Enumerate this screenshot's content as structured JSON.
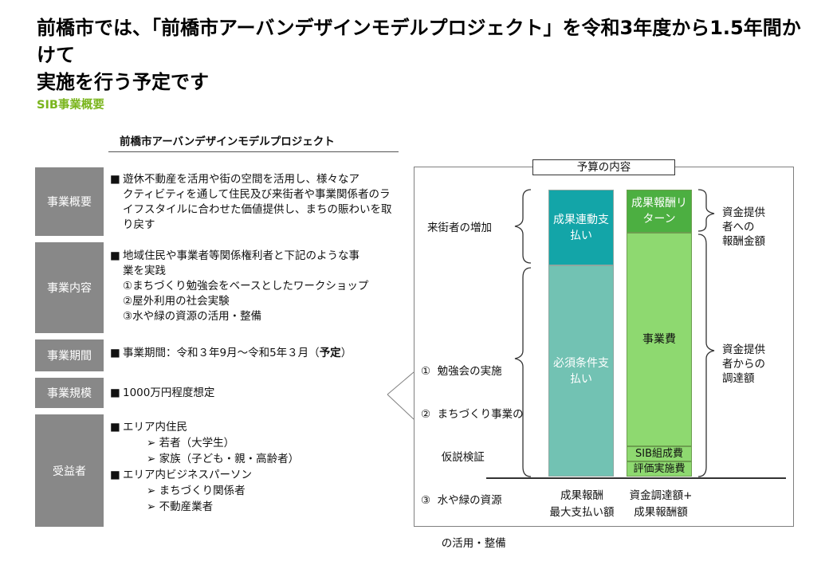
{
  "title": {
    "line1": "前橋市では、「前橋市アーバンデザインモデルプロジェクト」を令和3年度から1.5年間かけて",
    "line2": "実施を行う予定です"
  },
  "section_heading": "SIB事業概要",
  "project": {
    "name": "前橋市アーバンデザインモデルプロジェクト",
    "rows": [
      {
        "label": "事業概要",
        "lines": [
          "遊休不動産を活用や街の空間を活用し、様々なア",
          "クティビティを通して住民及び来街者や事業関係者のラ",
          "イフスタイルに合わせた価値提供し、まちの賑わいを取",
          "り戻す"
        ]
      },
      {
        "label": "事業内容",
        "lines": [
          "地域住民や事業者等関係権利者と下記のような事",
          "業を実践",
          "①まちづくり勉強会をベースとしたワークショップ",
          "②屋外利用の社会実験",
          "③水や緑の資源の活用・整備"
        ]
      },
      {
        "label": "事業期間",
        "text": "事業期間：令和３年9月～令和5年３月（",
        "bold": "予定",
        "close": "）"
      },
      {
        "label": "事業規模",
        "text": "1000万円程度想定"
      },
      {
        "label": "受益者",
        "group1": "エリア内住民",
        "group1_items": [
          "若者（大学生）",
          "家族（子ども・親・高齢者）"
        ],
        "group2": "エリア内ビジネスパーソン",
        "group2_items": [
          "まちづくり関係者",
          "不動産業者"
        ]
      }
    ]
  },
  "budget": {
    "caption": "予算の内容",
    "left_bar": {
      "top": [
        "成果連動支",
        "払い"
      ],
      "bottom": [
        "必須条件支",
        "払い"
      ]
    },
    "right_bar": {
      "top": [
        "成果報酬リ",
        "ターン"
      ],
      "middle": "事業費",
      "small1": "SIB組成費",
      "small2": "評価実施費"
    },
    "left_notes": {
      "visitors": "来街者の増加",
      "items": [
        "①  勉強会の実施",
        "②  まちづくり事業の",
        "      仮説検証",
        "③  水や緑の資源",
        "      の活用・整備"
      ]
    },
    "right_notes": {
      "top": [
        "資金提供",
        "者への",
        "報酬金額"
      ],
      "bottom": [
        "資金提供",
        "者からの",
        "調達額"
      ]
    },
    "bottom_labels": {
      "left": [
        "成果報酬",
        "最大支払い額"
      ],
      "right": [
        "資金調達額+",
        "成果報酬額"
      ]
    }
  },
  "colors": {
    "accent_green": "#7ab51d",
    "label_gray": "#888888",
    "teal_dark": "#13a5a8",
    "teal_light": "#72c2b3",
    "green_dark": "#4caf41",
    "green_light": "#8ed970"
  }
}
